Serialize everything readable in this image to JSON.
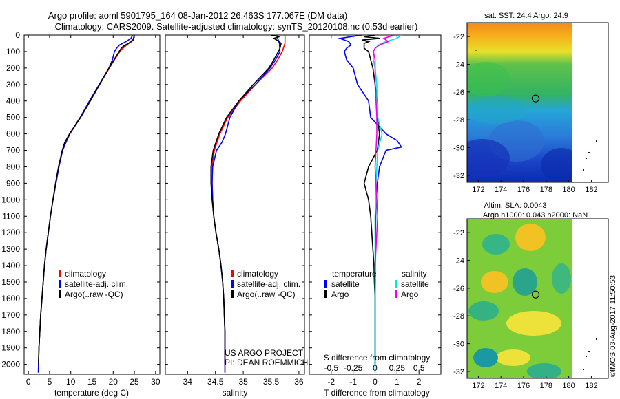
{
  "header": {
    "title1": "Argo profile: aoml 5901795_164 08-Jan-2012 26.463S 177.067E (DM data)",
    "title2": "Climatology: CARS2009. Satellite-adjusted climatology: synTS_20120108.nc (0.53d earlier)"
  },
  "depth_axis": {
    "ticks": [
      0,
      100,
      200,
      300,
      400,
      500,
      600,
      700,
      800,
      900,
      1000,
      1100,
      1200,
      1300,
      1400,
      1500,
      1600,
      1700,
      1800,
      1900,
      2000
    ],
    "range": [
      0,
      2060
    ]
  },
  "legend_labels": {
    "climatology": "climatology",
    "satellite": "satellite-adj. clim.",
    "argo": "Argo(..raw -QC)"
  },
  "colors": {
    "climatology": "#ff0000",
    "satellite": "#0000ff",
    "argo": "#000000",
    "salinity_satellite": "#00e5ee",
    "salinity_argo": "#ee00ee"
  },
  "credits": {
    "line1": "US ARGO PROJECT",
    "line2": "PI: DEAN ROEMMICH"
  },
  "diff_legend": {
    "temperature": "temperature",
    "salinity": "salinity",
    "satellite": "satellite",
    "argo": "Argo"
  },
  "maps": {
    "sst_title": "sat. SST: 24.4  Argo: 24.9",
    "sla_title1": "Altim. SLA: 0.0043",
    "sla_title2": "Argo h1000: 0.043 h2000: NaN",
    "x_ticks": [
      "172",
      "174",
      "176",
      "178",
      "180",
      "182"
    ],
    "y_ticks": [
      "-22",
      "-24",
      "-26",
      "-28",
      "-30",
      "-32"
    ],
    "float_position": {
      "lon": 177.067,
      "lat": -26.463
    }
  },
  "timestamp": "©IMOS 03-Aug-2017 11:50:53",
  "chart_data": [
    {
      "type": "line",
      "xlabel": "temperature (deg C)",
      "ylabel": "depth",
      "xlim": [
        -1,
        31
      ],
      "ylim": [
        2060,
        0
      ],
      "x_ticks": [
        0,
        5,
        10,
        15,
        20,
        25,
        30
      ],
      "series": [
        {
          "name": "climatology",
          "depth": [
            0,
            20,
            40,
            60,
            80,
            100,
            150,
            200,
            300,
            400,
            500,
            600,
            700,
            800,
            900,
            1000,
            1100,
            1200,
            1300,
            1400,
            1500,
            1600,
            1700,
            1800,
            1900,
            2000,
            2050
          ],
          "values": [
            25,
            24.8,
            24.2,
            23.2,
            22.3,
            21.6,
            20.3,
            19.1,
            16.8,
            14.6,
            12.3,
            9.8,
            8.0,
            7.2,
            6.5,
            5.8,
            5.2,
            4.7,
            4.2,
            3.8,
            3.5,
            3.2,
            2.9,
            2.7,
            2.5,
            2.4,
            2.35
          ]
        },
        {
          "name": "satellite-adj. clim.",
          "depth": [
            0,
            20,
            40,
            60,
            80,
            100,
            150,
            200,
            300,
            400,
            500,
            600,
            700,
            800,
            900,
            1000,
            1100,
            1200,
            1300,
            1400,
            1500,
            1600,
            1700,
            1800,
            1900,
            2000,
            2050
          ],
          "values": [
            24.6,
            24.2,
            23.0,
            21.5,
            20.8,
            20.3,
            19.8,
            19.0,
            16.7,
            14.4,
            12.2,
            9.7,
            8.1,
            7.2,
            6.5,
            5.8,
            5.2,
            4.7,
            4.2,
            3.8,
            3.5,
            3.2,
            2.9,
            2.7,
            2.5,
            2.4,
            2.35
          ]
        },
        {
          "name": "Argo(..raw -QC)",
          "depth": [
            0,
            10,
            20,
            30,
            40,
            50,
            60,
            70,
            80,
            100,
            150,
            200,
            300,
            400,
            500,
            600,
            650,
            700,
            800,
            900,
            1000,
            1100,
            1200,
            1300,
            1400,
            1500,
            1600,
            1700,
            1800,
            1900,
            2000
          ],
          "values": [
            25.0,
            24.9,
            24.8,
            24.7,
            24.3,
            23.6,
            22.9,
            22.3,
            21.9,
            21.4,
            20.2,
            19.0,
            16.8,
            14.6,
            12.3,
            9.7,
            8.6,
            8.0,
            7.1,
            6.4,
            5.8,
            5.2,
            4.7,
            4.2,
            3.8,
            3.5,
            3.2,
            2.9,
            2.7,
            2.5,
            2.4
          ]
        }
      ]
    },
    {
      "type": "line",
      "xlabel": "salinity",
      "ylabel": "depth",
      "xlim": [
        33.6,
        36.1
      ],
      "ylim": [
        2060,
        0
      ],
      "x_ticks": [
        34,
        34.5,
        35,
        35.5,
        36
      ],
      "x_tick_labels": [
        "34",
        "34.5",
        "35",
        "35.5",
        "36"
      ],
      "series": [
        {
          "name": "climatology",
          "depth": [
            0,
            50,
            100,
            150,
            200,
            300,
            400,
            500,
            600,
            700,
            800,
            900,
            1000,
            1100,
            1200,
            1300,
            1400,
            1500,
            1600,
            1700,
            1800,
            1900,
            2000,
            2050
          ],
          "values": [
            35.75,
            35.75,
            35.7,
            35.62,
            35.52,
            35.22,
            34.95,
            34.72,
            34.58,
            34.48,
            34.44,
            34.44,
            34.45,
            34.47,
            34.51,
            34.56,
            34.6,
            34.63,
            34.65,
            34.66,
            34.67,
            34.67,
            34.67,
            34.67
          ]
        },
        {
          "name": "satellite-adj. clim.",
          "depth": [
            0,
            50,
            100,
            150,
            200,
            300,
            400,
            500,
            600,
            650,
            700,
            800,
            900,
            1000,
            1100,
            1200,
            1300,
            1400,
            1500,
            1600,
            1700,
            1800,
            1900,
            2000,
            2050
          ],
          "values": [
            35.6,
            35.65,
            35.66,
            35.58,
            35.48,
            35.22,
            34.92,
            34.76,
            34.68,
            34.62,
            34.52,
            34.45,
            34.44,
            34.45,
            34.47,
            34.51,
            34.56,
            34.6,
            34.63,
            34.65,
            34.66,
            34.67,
            34.67,
            34.67,
            34.67
          ]
        },
        {
          "name": "Argo(..raw -QC)",
          "depth": [
            0,
            10,
            20,
            30,
            50,
            80,
            100,
            150,
            200,
            300,
            400,
            500,
            600,
            700,
            800,
            900,
            1000,
            1100,
            1200,
            1300,
            1400,
            1500,
            1600,
            1700,
            1800,
            1900,
            2000
          ],
          "values": [
            35.5,
            35.65,
            35.55,
            35.6,
            35.68,
            35.66,
            35.63,
            35.55,
            35.46,
            35.18,
            34.92,
            34.7,
            34.56,
            34.46,
            34.42,
            34.42,
            34.44,
            34.47,
            34.51,
            34.56,
            34.6,
            34.63,
            34.65,
            34.66,
            34.67,
            34.67,
            34.67
          ]
        }
      ]
    },
    {
      "type": "line",
      "xlabel": "T difference from climatology",
      "x2label": "S difference from climatology",
      "ylabel": "depth",
      "xlim": [
        -3,
        3
      ],
      "ylim": [
        2060,
        0
      ],
      "x_ticks": [
        -2,
        -1,
        0,
        1,
        2
      ],
      "x2_ticks": [
        -0.5,
        -0.25,
        0,
        0.25,
        0.5
      ],
      "x2_tick_labels": [
        "-0.5",
        "-0.25",
        "0",
        "0.25",
        "0.5"
      ],
      "x2_scale_factor": 4,
      "series": [
        {
          "name": "temperature satellite",
          "axis": "T",
          "depth": [
            0,
            20,
            40,
            60,
            80,
            100,
            150,
            200,
            300,
            400,
            500,
            600,
            640,
            680,
            700,
            800,
            900,
            1000,
            1100,
            1200,
            1300,
            1400,
            1500,
            1600,
            1800,
            2000
          ],
          "values": [
            -0.6,
            -1.6,
            -1.2,
            -1.1,
            -1.3,
            -1.4,
            -1.3,
            -1.0,
            -0.8,
            -0.3,
            -0.2,
            0.5,
            1.0,
            1.2,
            0.5,
            0.2,
            0.1,
            0.05,
            0.03,
            0.02,
            0.02,
            0.01,
            0.01,
            0.0,
            0.0,
            0.0
          ]
        },
        {
          "name": "temperature Argo",
          "axis": "T",
          "depth": [
            0,
            10,
            20,
            30,
            40,
            50,
            60,
            80,
            100,
            150,
            200,
            300,
            400,
            500,
            600,
            700,
            800,
            850,
            900,
            950,
            1000,
            1100,
            1200,
            1300,
            1400,
            1500,
            1600,
            1800,
            2000
          ],
          "values": [
            0.0,
            -0.5,
            0.2,
            -0.6,
            -0.3,
            -0.5,
            -0.5,
            -0.5,
            -0.3,
            -0.2,
            -0.1,
            0.0,
            0.1,
            0.1,
            0.2,
            0.1,
            -0.3,
            -0.4,
            -0.5,
            -0.4,
            -0.3,
            -0.2,
            -0.15,
            -0.1,
            -0.05,
            -0.03,
            0.0,
            0.0,
            0.0
          ]
        },
        {
          "name": "salinity satellite",
          "axis": "S",
          "depth": [
            0,
            20,
            40,
            60,
            80,
            100,
            150,
            200,
            300,
            400,
            500,
            600,
            700,
            800,
            900,
            1000,
            1100,
            1200,
            1300,
            1400,
            1500,
            1600,
            1700,
            1800,
            1900,
            2000,
            2050
          ],
          "values": [
            0.3,
            0.25,
            0.12,
            0.04,
            0.0,
            -0.02,
            -0.02,
            0.0,
            0.02,
            0.02,
            0.03,
            0.08,
            0.03,
            0.02,
            0.01,
            0.01,
            0.0,
            0.0,
            0.0,
            0.0,
            0.0,
            0.0,
            0.0,
            0.0,
            0.0,
            0.0,
            0.0
          ]
        },
        {
          "name": "salinity Argo",
          "axis": "S",
          "depth": [
            0,
            20,
            40,
            60,
            80,
            100,
            150,
            200,
            300,
            400,
            500,
            600,
            700,
            800,
            900,
            1000,
            1100,
            1200,
            1300,
            1400
          ],
          "values": [
            0.22,
            0.1,
            0.15,
            0.05,
            0.0,
            -0.02,
            0.0,
            0.0,
            0.0,
            0.01,
            0.02,
            0.02,
            0.01,
            0.0,
            0.01,
            0.02,
            0.03,
            0.02,
            0.01,
            0.0
          ]
        }
      ]
    }
  ]
}
